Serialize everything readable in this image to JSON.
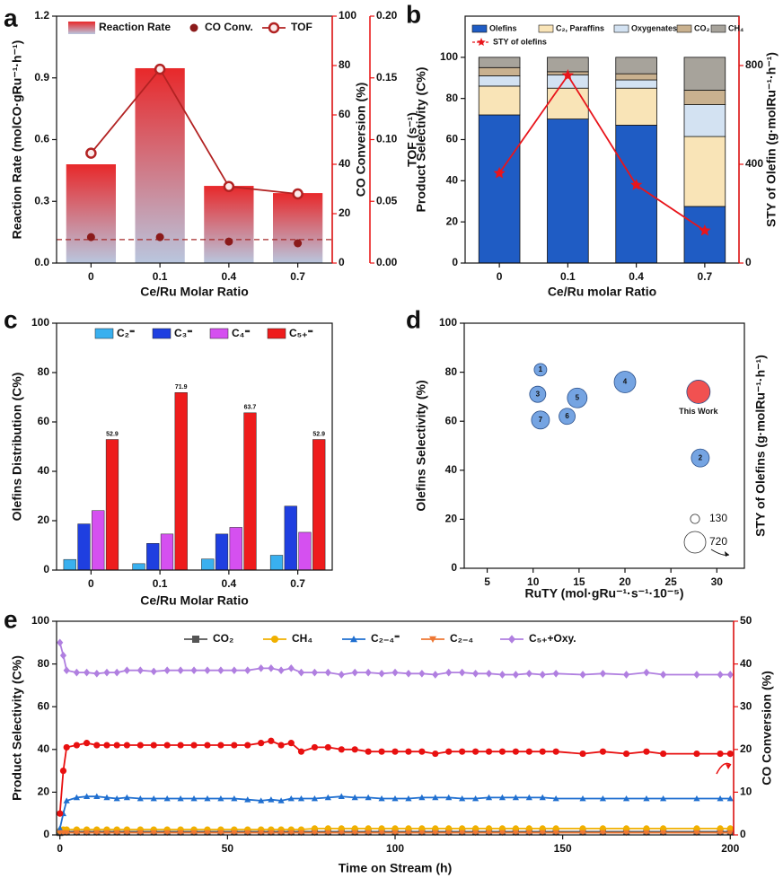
{
  "chart_data": [
    {
      "panel_label": "a",
      "type": "combo",
      "categories": [
        "0",
        "0.1",
        "0.4",
        "0.7"
      ],
      "x_label": "Ce/Ru Molar Ratio",
      "y_label": "Reaction Rate (molCO·gRu⁻¹·h⁻¹)",
      "y2_label": "CO Conversion (%)",
      "y3_label": "TOF (s⁻¹)",
      "ylim": [
        0,
        1.2
      ],
      "yticks": [
        {
          "value": 0,
          "label": "0.0"
        },
        0.3,
        0.6,
        0.9,
        1.2
      ],
      "y2lim": [
        0,
        100
      ],
      "y2ticks": [
        0,
        20,
        40,
        60,
        80,
        100
      ],
      "y3lim": [
        0,
        0.2
      ],
      "y3ticks": [
        {
          "value": 0,
          "label": "0.00"
        },
        0.05,
        {
          "value": 0.1,
          "label": "0.10"
        },
        0.15,
        {
          "value": 0.2,
          "label": "0.20"
        }
      ],
      "series": [
        {
          "name": "Reaction Rate",
          "type": "bar",
          "color": "#e8282a",
          "values": [
            0.48,
            0.947,
            0.375,
            0.34
          ]
        },
        {
          "name": "CO Conv.",
          "type": "scatter",
          "axis": "y2",
          "color": "#8b1a1a",
          "values": [
            10.5,
            10.5,
            8.7,
            8
          ]
        },
        {
          "name": "TOF",
          "type": "line",
          "axis": "y3",
          "color": "#b22222",
          "values": [
            0.089,
            0.157,
            0.062,
            0.056
          ]
        }
      ],
      "reference_line": {
        "value": 9.5,
        "axis": "y2",
        "color": "#a52a2a"
      }
    },
    {
      "panel_label": "b",
      "type": "stacked_bar",
      "categories": [
        "0",
        "0.1",
        "0.4",
        "0.7"
      ],
      "x_label": "Ce/Ru molar Ratio",
      "y_label": "Product Selectivity (C%)",
      "y2_label": "STY of Olefin (g·molRu⁻¹·h⁻¹)",
      "ylim": [
        0,
        120
      ],
      "yticks": [
        0,
        20,
        40,
        60,
        80,
        100
      ],
      "y2lim": [
        0,
        1000
      ],
      "y2ticks": [
        0,
        400,
        800
      ],
      "series": [
        {
          "name": "Olefins",
          "type": "bar",
          "color": "#1f5cc4",
          "values": [
            72,
            70,
            67,
            27.5
          ]
        },
        {
          "name": "C₂, Paraffins",
          "type": "bar",
          "color": "#f9e4b7",
          "values": [
            14,
            15,
            18,
            34
          ]
        },
        {
          "name": "Oxygenates",
          "type": "bar",
          "color": "#d3e2f2",
          "values": [
            5,
            6.5,
            4,
            15.5
          ]
        },
        {
          "name": "CO₂",
          "type": "bar",
          "color": "#c9b18f",
          "values": [
            4,
            1.5,
            3,
            7
          ]
        },
        {
          "name": "CH₄",
          "type": "bar",
          "color": "#a7a39b",
          "values": [
            5,
            7,
            8,
            16
          ]
        },
        {
          "name": "STY of olefins",
          "type": "line",
          "axis": "y2",
          "color": "#e8151b",
          "values": [
            364,
            760,
            316,
            131
          ]
        }
      ]
    },
    {
      "panel_label": "c",
      "type": "grouped_bar",
      "categories": [
        "0",
        "0.1",
        "0.4",
        "0.7"
      ],
      "x_label": "Ce/Ru Molar Ratio",
      "y_label": "Olefins Distribution (C%)",
      "ylim": [
        0,
        100
      ],
      "yticks": [
        0,
        20,
        40,
        60,
        80,
        100
      ],
      "series": [
        {
          "name": "C₂⁼",
          "color": "#39b0ef",
          "values": [
            4.3,
            2.6,
            4.5,
            6.0
          ]
        },
        {
          "name": "C₃⁼",
          "color": "#1f3fe0",
          "values": [
            18.7,
            10.8,
            14.6,
            25.9
          ]
        },
        {
          "name": "C₄⁼",
          "color": "#d550f0",
          "values": [
            24.1,
            14.6,
            17.3,
            15.3
          ]
        },
        {
          "name": "C₅₊⁼",
          "color": "#ee1c1c",
          "values": [
            52.9,
            71.9,
            63.7,
            52.9
          ],
          "show_labels": true
        }
      ]
    },
    {
      "panel_label": "d",
      "type": "bubble",
      "x_label": "RuTY (mol·gRu⁻¹·s⁻¹·10⁻⁵)",
      "y_label": "Olefins Selectivity (%)",
      "y2_label": "STY of Olefins (g·molRu⁻¹·h⁻¹)",
      "xlim": [
        2.5,
        33
      ],
      "xticks": [
        5,
        10,
        15,
        20,
        25,
        30
      ],
      "ylim": [
        0,
        100
      ],
      "yticks": [
        0,
        20,
        40,
        60,
        80,
        100
      ],
      "points": [
        {
          "label": "1",
          "x": 10.8,
          "y": 81,
          "size": 245,
          "color": "#6e9fe0"
        },
        {
          "label": "3",
          "x": 10.5,
          "y": 71,
          "size": 405,
          "color": "#6e9fe0"
        },
        {
          "label": "7",
          "x": 10.8,
          "y": 60.5,
          "size": 500,
          "color": "#6e9fe0"
        },
        {
          "label": "6",
          "x": 13.7,
          "y": 62,
          "size": 405,
          "color": "#6e9fe0"
        },
        {
          "label": "5",
          "x": 14.8,
          "y": 69.5,
          "size": 605,
          "color": "#6e9fe0"
        },
        {
          "label": "4",
          "x": 20,
          "y": 76,
          "size": 720,
          "color": "#6e9fe0"
        },
        {
          "label": "2",
          "x": 28.2,
          "y": 45,
          "size": 500,
          "color": "#6e9fe0"
        },
        {
          "label": "This Work",
          "x": 28,
          "y": 72,
          "size": 845,
          "color": "#f04848"
        }
      ],
      "size_legend": [
        130,
        720
      ]
    },
    {
      "panel_label": "e",
      "type": "line",
      "x_label": "Time on Stream (h)",
      "y_label": "Product Selectivity (C%)",
      "y2_label": "CO Conversion (%)",
      "xlim": [
        -1,
        201
      ],
      "xticks": [
        0,
        50,
        100,
        150,
        200
      ],
      "ylim": [
        0,
        100
      ],
      "yticks": [
        0,
        20,
        40,
        60,
        80,
        100
      ],
      "y2lim": [
        0,
        50
      ],
      "y2ticks": [
        0,
        10,
        20,
        30,
        40,
        50
      ],
      "x": [
        0,
        1,
        2,
        5,
        8,
        11,
        14,
        17,
        20,
        24,
        28,
        32,
        36,
        40,
        44,
        48,
        52,
        56,
        60,
        63,
        66,
        69,
        72,
        76,
        80,
        84,
        88,
        92,
        96,
        100,
        104,
        108,
        112,
        116,
        120,
        124,
        128,
        132,
        136,
        140,
        144,
        148,
        156,
        162,
        169,
        175,
        180,
        190,
        197,
        200
      ],
      "series": [
        {
          "name": "CO₂",
          "marker": "square",
          "color": "#555555",
          "values": [
            1,
            1.5,
            1.5,
            1.5,
            1.5,
            1.5,
            1.5,
            1.5,
            1.5,
            1.5,
            1.5,
            1.5,
            1.5,
            1.5,
            1.5,
            1.5,
            1.5,
            1.5,
            1.5,
            1.5,
            1.5,
            1.5,
            1.5,
            1.5,
            1.5,
            1.5,
            1.5,
            1.5,
            1.5,
            1.5,
            1.5,
            1.5,
            1.5,
            1.5,
            1.5,
            1.5,
            1.5,
            1.5,
            1.5,
            1.5,
            1.5,
            1.5,
            1.5,
            1.5,
            1.5,
            1.5,
            1.5,
            1.5,
            1.5,
            1.5
          ]
        },
        {
          "name": "CH₄",
          "marker": "circle",
          "color": "#f0b000",
          "values": [
            2,
            2.5,
            2.5,
            2.5,
            2.5,
            2.5,
            2.5,
            2.5,
            2.5,
            2.5,
            2.5,
            2.5,
            2.5,
            2.5,
            2.5,
            2.5,
            2.5,
            2.5,
            2.5,
            2.5,
            2.5,
            2.5,
            2.5,
            3,
            3,
            3,
            3,
            3,
            3,
            3,
            3,
            3,
            3,
            3,
            3,
            3,
            3,
            3,
            3,
            3,
            3,
            3,
            3,
            3,
            3,
            3,
            3,
            3,
            3,
            3
          ]
        },
        {
          "name": "C₂₋₄⁼",
          "marker": "triangle",
          "color": "#1f6fd0",
          "values": [
            3,
            10,
            16,
            17.5,
            18,
            18,
            17.5,
            17,
            17.5,
            17,
            17,
            17,
            17,
            17,
            17,
            17,
            17,
            16.5,
            16,
            16.5,
            16,
            17,
            17,
            17,
            17.5,
            18,
            17.5,
            17.5,
            17,
            17,
            17,
            17.5,
            17.5,
            17.5,
            17,
            17,
            17.5,
            17.5,
            17.5,
            17.5,
            17.5,
            17,
            17,
            17,
            17,
            17,
            17,
            17,
            17,
            17
          ]
        },
        {
          "name": "C₂₋₄",
          "marker": "down-triangle",
          "color": "#ee7733",
          "values": [
            1,
            1,
            1,
            1,
            1,
            1,
            1,
            1,
            1,
            1,
            1,
            1,
            1,
            1,
            1,
            1,
            1,
            1,
            1,
            1,
            1,
            1,
            1,
            1,
            1,
            1,
            1,
            1,
            1,
            1,
            1,
            1,
            1,
            1,
            1,
            1,
            1,
            1,
            1,
            1,
            1,
            1,
            1,
            1,
            1,
            1,
            1,
            1,
            1,
            1
          ]
        },
        {
          "name": "C₅₊+Oxy.",
          "marker": "diamond",
          "color": "#b07fe0",
          "values": [
            90,
            84,
            77,
            76,
            76,
            75.5,
            76,
            76,
            77,
            77,
            76.5,
            77,
            77,
            77,
            77,
            77,
            77,
            77,
            78,
            78,
            77,
            78,
            76,
            76,
            76,
            75,
            76,
            76,
            75.5,
            76,
            75.5,
            75.5,
            75,
            76,
            76,
            75.5,
            75.5,
            75,
            75,
            75.5,
            75,
            75.5,
            75,
            75.5,
            75,
            76,
            75,
            75,
            75,
            75
          ]
        },
        {
          "marker": "circle",
          "axis": "y2",
          "color": "#e81010",
          "values": [
            5,
            15,
            20.5,
            21,
            21.5,
            21,
            21,
            21,
            21,
            21,
            21,
            21,
            21,
            21,
            21,
            21,
            21,
            21,
            21.5,
            22,
            21,
            21.5,
            19.5,
            20.5,
            20.5,
            20,
            20,
            19.5,
            19.5,
            19.5,
            19.5,
            19.5,
            19,
            19.5,
            19.5,
            19.5,
            19.5,
            19.5,
            19.5,
            19.5,
            19.5,
            19.5,
            19,
            19.5,
            19,
            19.5,
            19,
            19,
            19,
            19
          ]
        }
      ]
    }
  ]
}
